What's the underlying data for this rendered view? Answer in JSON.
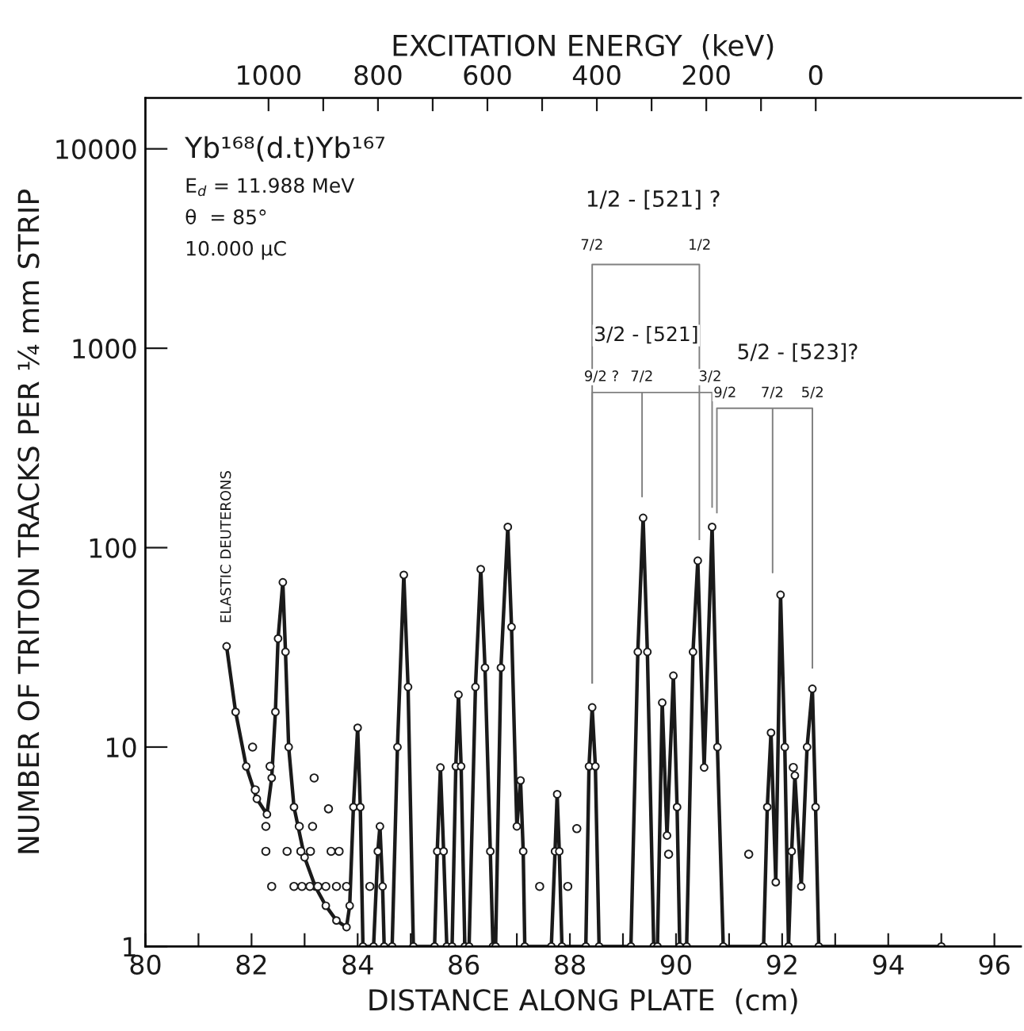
{
  "chart_data": {
    "type": "line",
    "xlabel": "DISTANCE ALONG PLATE  (cm)",
    "ylabel": "NUMBER OF TRITON TRACKS PER ¼ mm STRIP",
    "x2label": "EXCITATION ENERGY  (keV)",
    "log": "y",
    "grid": false,
    "xlim": [
      80,
      96.5
    ],
    "ylim": [
      1,
      18000
    ],
    "xticks": [
      80,
      {
        "value": 81,
        "label": null
      },
      82,
      {
        "value": 83,
        "label": null
      },
      84,
      {
        "value": 85,
        "label": null
      },
      86,
      {
        "value": 87,
        "label": null
      },
      88,
      {
        "value": 89,
        "label": null
      },
      90,
      {
        "value": 91,
        "label": null
      },
      92,
      {
        "value": 93,
        "label": null
      },
      94,
      {
        "value": 95,
        "label": null
      },
      96
    ],
    "yticks": [
      1,
      10,
      100,
      1000,
      10000
    ],
    "x2lim": [
      1225,
      -375
    ],
    "x2ticks": [
      1000,
      {
        "value": 900,
        "label": null
      },
      800,
      {
        "value": 700,
        "label": null
      },
      600,
      {
        "value": 500,
        "label": null
      },
      400,
      {
        "value": 300,
        "label": null
      },
      200,
      {
        "value": 100,
        "label": null
      },
      0
    ],
    "series": [
      {
        "color": "#1a1a1a",
        "marker": "circle",
        "line_style": "solid",
        "x": [
          81.53,
          81.7,
          81.9,
          82.1,
          82.29,
          82.38,
          82.45,
          82.5,
          82.59,
          82.64,
          82.7,
          82.8,
          83.0,
          83.2,
          83.4,
          83.6,
          83.79,
          83.85,
          83.92,
          84.0,
          84.05,
          84.1,
          84.3,
          84.38,
          84.42,
          84.47,
          84.5,
          84.65,
          84.75,
          84.87,
          84.95,
          85.05,
          85.45,
          85.5,
          85.56,
          85.62,
          85.68,
          85.78,
          85.85,
          85.9,
          85.95,
          86.02,
          86.1,
          86.22,
          86.32,
          86.4,
          86.5,
          86.55,
          86.6,
          86.7,
          86.83,
          86.9,
          87.0,
          87.07,
          87.12,
          87.15,
          87.65,
          87.72,
          87.76,
          87.8,
          87.85,
          88.3,
          88.36,
          88.42,
          88.48,
          88.55,
          89.15,
          89.28,
          89.38,
          89.46,
          89.58,
          89.65,
          89.74,
          89.83,
          89.95,
          90.02,
          90.07,
          90.2,
          90.32,
          90.41,
          90.53,
          90.68,
          90.78,
          90.89,
          91.65,
          91.72,
          91.79,
          91.88,
          91.97,
          92.05,
          92.12,
          92.18,
          92.24,
          92.36,
          92.47,
          92.57,
          92.63,
          92.69,
          95.0
        ],
        "values": [
          32,
          15,
          8,
          5.5,
          4.6,
          7,
          15,
          35,
          67,
          30,
          10,
          5,
          2.8,
          2.0,
          1.6,
          1.35,
          1.25,
          1.6,
          5,
          12.5,
          5,
          1,
          1,
          3,
          4.0,
          2,
          1,
          1,
          10,
          73,
          20,
          1,
          1,
          3,
          7.9,
          3,
          1,
          1,
          8,
          18.3,
          8,
          1,
          1,
          20,
          78,
          25,
          3,
          1,
          1,
          25,
          127,
          40,
          4,
          6.8,
          3,
          1,
          1,
          3,
          5.8,
          3,
          1,
          1,
          8,
          15.8,
          8,
          1,
          1,
          30,
          141,
          30,
          1,
          1,
          16.7,
          3.6,
          22.8,
          5,
          1,
          1,
          30,
          86,
          7.9,
          127,
          10,
          1,
          1,
          5,
          11.8,
          2.1,
          58,
          10,
          1,
          3,
          7.2,
          2.0,
          10,
          19.6,
          5,
          1,
          1
        ]
      },
      {
        "type": "scatter",
        "color": "#1a1a1a",
        "marker": "circle",
        "x": [
          82.02,
          82.07,
          82.35,
          82.27,
          82.27,
          82.38,
          83.18,
          83.45,
          82.9,
          83.15,
          82.67,
          82.93,
          83.11,
          83.5,
          83.65,
          82.8,
          82.95,
          83.1,
          83.25,
          83.4,
          83.6,
          83.79,
          84.23,
          88.13,
          89.86,
          91.37,
          87.43,
          87.96,
          92.21
        ],
        "values": [
          10.0,
          6.1,
          8.0,
          4.0,
          3.0,
          2.0,
          7.0,
          4.9,
          4.0,
          4.0,
          3.0,
          3.0,
          3.0,
          3.0,
          3.0,
          2.0,
          2.0,
          2.0,
          2.0,
          2.0,
          2.0,
          2.0,
          2.0,
          3.9,
          2.9,
          2.9,
          2.0,
          2.0,
          7.9
        ]
      },
      {
        "type": "line",
        "color": "#808080",
        "marker": "none",
        "line_style": "solid",
        "x": [
          88.42,
          88.42,
          90.44,
          90.44
        ],
        "values": [
          21,
          2630,
          2630,
          110
        ]
      },
      {
        "type": "line",
        "color": "#808080",
        "marker": "none",
        "line_style": "solid",
        "x": [
          88.42,
          88.42,
          89.36,
          89.36,
          89.36,
          90.68,
          90.68
        ],
        "values": [
          21,
          600,
          600,
          180,
          600,
          600,
          160
        ]
      },
      {
        "type": "line",
        "color": "#808080",
        "marker": "none",
        "line_style": "solid",
        "x": [
          90.77,
          90.77,
          91.82,
          91.82,
          91.82,
          92.57,
          92.57
        ],
        "values": [
          150,
          500,
          500,
          75,
          500,
          500,
          25
        ]
      }
    ],
    "annotations": [
      "Yb¹⁶⁸(d.t)Yb¹⁶⁷",
      "E$_{d}$ = 11.988 MeV",
      "θ  = 85°",
      "10.000 μC",
      "ELASTIC DEUTERONS",
      "1/2 - [521] ?",
      "7/2",
      "1/2",
      "3/2 - [521]",
      "9/2 ?",
      "7/2",
      "3/2",
      "5/2 - [523]?",
      "9/2",
      "7/2",
      "5/2"
    ]
  }
}
